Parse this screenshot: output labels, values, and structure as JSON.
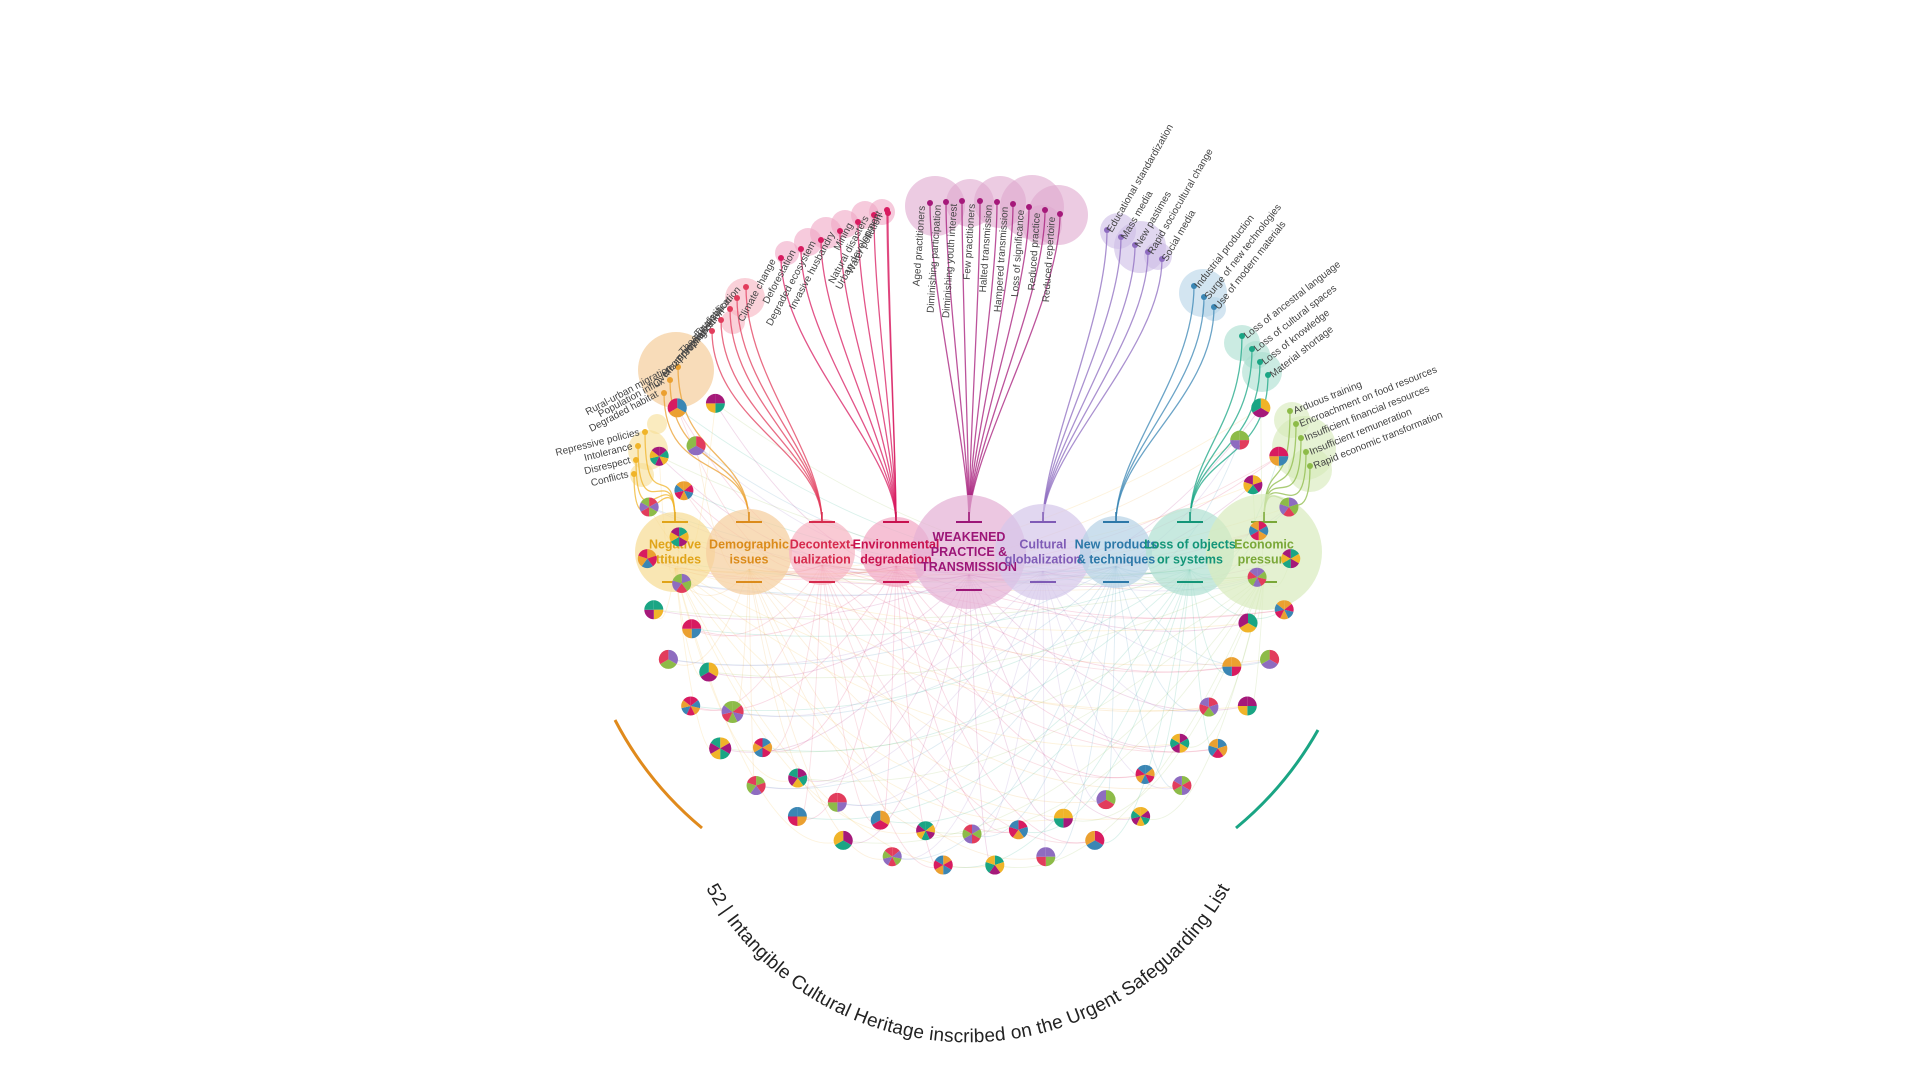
{
  "bottom_title": "52 | Intangible Cultural Heritage inscribed on the Urgent Safeguarding List",
  "colors": {
    "negative": "#f0b429",
    "demographic": "#eba030",
    "decontext": "#e23c5c",
    "environmental": "#d81b60",
    "weakened": "#a5197a",
    "cultural": "#8e6cc0",
    "newproducts": "#3a86b4",
    "loss": "#1aa584",
    "economic": "#8dbb48"
  },
  "categories": [
    {
      "id": "negative",
      "label_lines": [
        "Negative",
        "attitudes"
      ],
      "color": "#f0b429",
      "threats": [
        "Repressive policies",
        "Intolerance",
        "Disrespect",
        "Conflicts"
      ]
    },
    {
      "id": "demographic",
      "label_lines": [
        "Demographic",
        "issues"
      ],
      "color": "#eba030",
      "threats": [
        "Rural-urban migration",
        "Population influx",
        "Degraded habitat"
      ]
    },
    {
      "id": "decontext",
      "label_lines": [
        "Decontext-",
        "ualization"
      ],
      "color": "#e23c5c",
      "threats": [
        "Touristification",
        "Theatricalization",
        "Overcommercialization",
        "Misappropriation",
        "Freezing"
      ]
    },
    {
      "id": "environmental",
      "label_lines": [
        "Environmental",
        "degradation"
      ],
      "color": "#d81b60",
      "threats": [
        "Climate change",
        "Deforestation",
        "Degraded ecosystem",
        "Invasive husbandry",
        "Mining",
        "Natural disasters",
        "Urban development",
        "Water pollution"
      ]
    },
    {
      "id": "weakened",
      "label_lines": [
        "WEAKENED",
        "PRACTICE &",
        "TRANSMISSION"
      ],
      "color": "#a5197a",
      "threats": [
        "Aged practitioners",
        "Diminishing participation",
        "Diminishing youth interest",
        "Few practitioners",
        "Halted transmission",
        "Hampered transmission",
        "Loss of significance",
        "Reduced practice",
        "Reduced repertoire"
      ]
    },
    {
      "id": "cultural",
      "label_lines": [
        "Cultural",
        "globalization"
      ],
      "color": "#8e6cc0",
      "threats": [
        "Educational standardization",
        "Mass media",
        "New pastimes",
        "Rapid sociocultural change",
        "Social media"
      ]
    },
    {
      "id": "newproducts",
      "label_lines": [
        "New products",
        "& techniques"
      ],
      "color": "#3a86b4",
      "threats": [
        "Industrial production",
        "Surge of new technologies",
        "Use of modern materials"
      ]
    },
    {
      "id": "loss",
      "label_lines": [
        "Loss of objects",
        "or systems"
      ],
      "color": "#1aa584",
      "threats": [
        "Loss of ancestral language",
        "Loss of cultural spaces",
        "Loss of knowledge",
        "Material shortage"
      ]
    },
    {
      "id": "economic",
      "label_lines": [
        "Economic",
        "pressure"
      ],
      "color": "#8dbb48",
      "threats": [
        "Arduous training",
        "Encroachment on food resources",
        "Insufficient financial resources",
        "Insufficient remuneration",
        "Rapid economic transformation"
      ]
    }
  ],
  "element_count": 52
}
